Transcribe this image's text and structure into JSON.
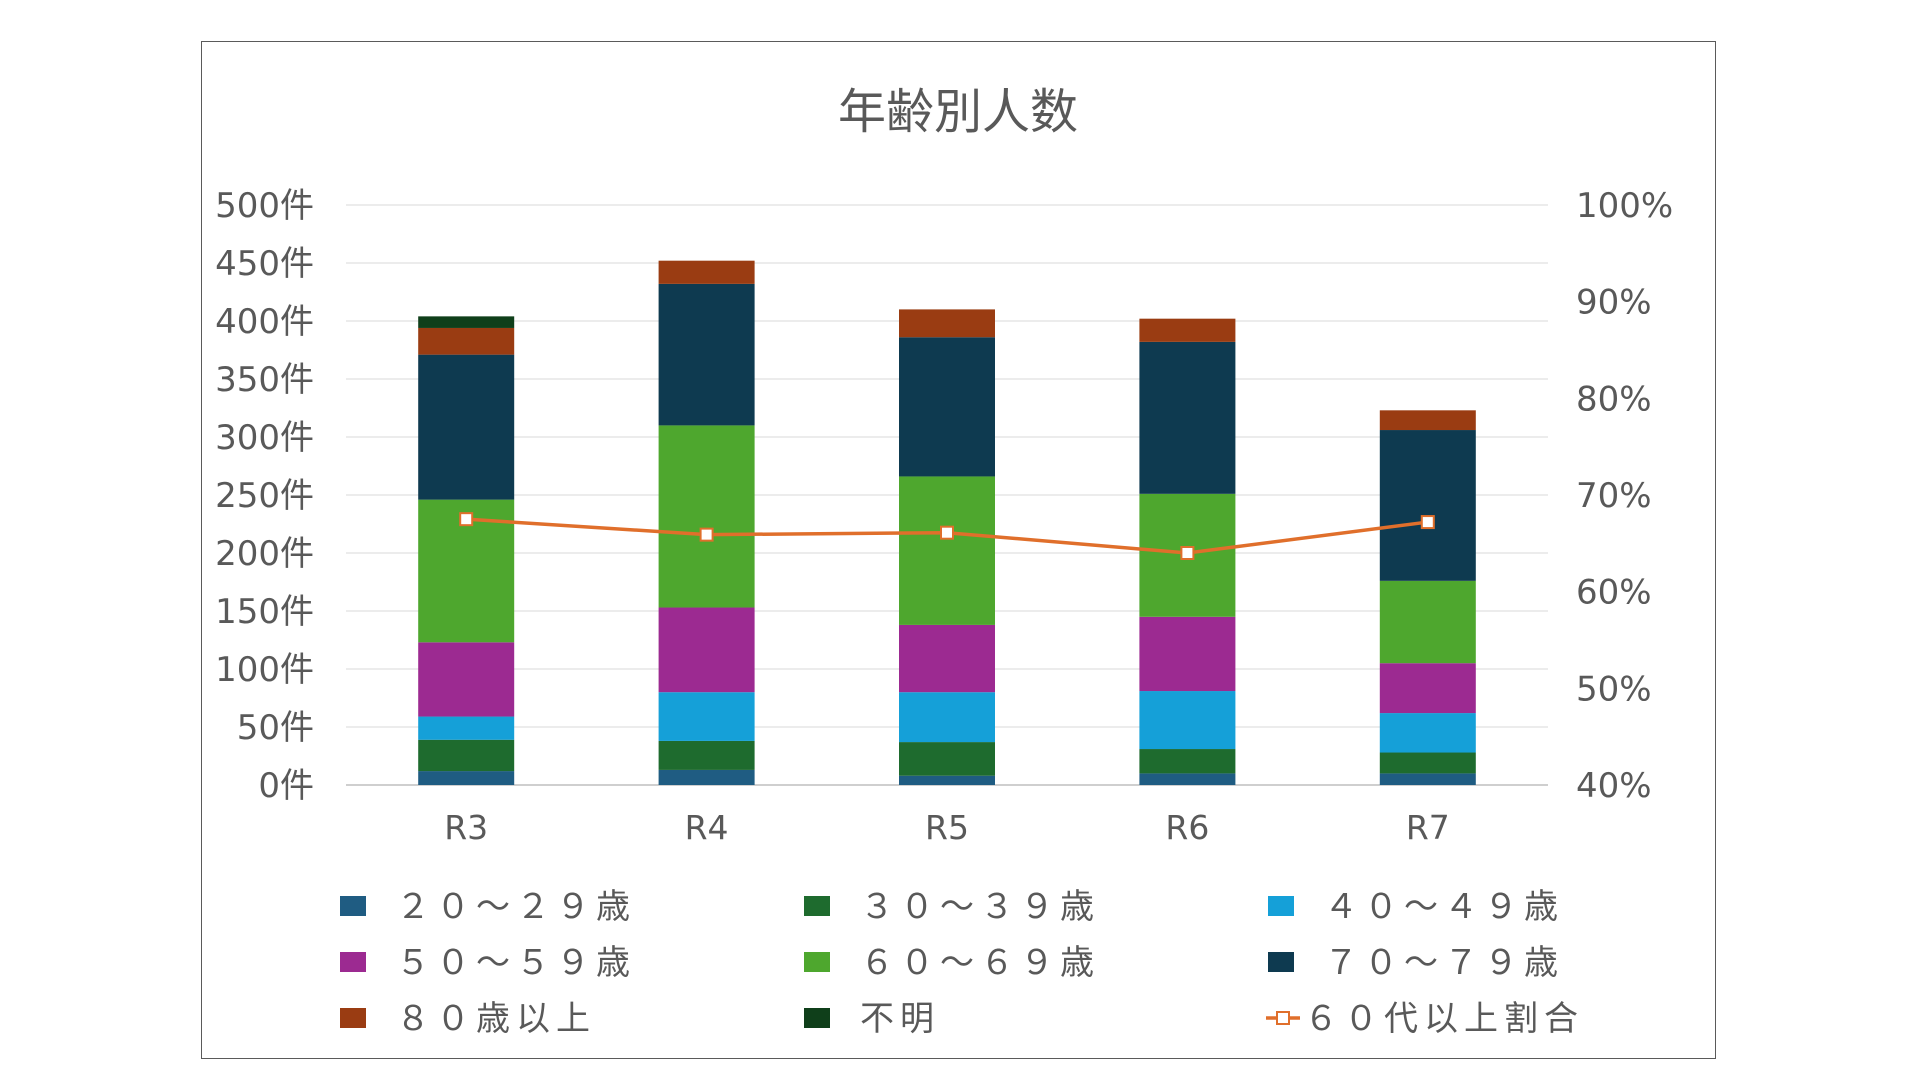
{
  "chart_data": {
    "type": "bar",
    "stacked": true,
    "title": "年齢別人数",
    "categories": [
      "R3",
      "R4",
      "R5",
      "R6",
      "R7"
    ],
    "y_ticks": [
      "0件",
      "50件",
      "100件",
      "150件",
      "200件",
      "250件",
      "300件",
      "350件",
      "400件",
      "450件",
      "500件"
    ],
    "y2_ticks": [
      "40%",
      "50%",
      "60%",
      "70%",
      "80%",
      "90%",
      "100%"
    ],
    "ylim": [
      0,
      500
    ],
    "y2lim": [
      0.4,
      1.0
    ],
    "grid": true,
    "legend_position": "bottom",
    "series": [
      {
        "name": "２０～２９歳",
        "color": "#1f5c82",
        "values": [
          12,
          13,
          8,
          10,
          10
        ]
      },
      {
        "name": "３０～３９歳",
        "color": "#1e6b2e",
        "values": [
          27,
          25,
          29,
          21,
          18
        ]
      },
      {
        "name": "４０～４９歳",
        "color": "#15a0d8",
        "values": [
          20,
          42,
          43,
          50,
          34
        ]
      },
      {
        "name": "５０～５９歳",
        "color": "#9c2a91",
        "values": [
          64,
          73,
          58,
          64,
          43
        ]
      },
      {
        "name": "６０～６９歳",
        "color": "#4ea72e",
        "values": [
          123,
          157,
          128,
          106,
          71
        ]
      },
      {
        "name": "７０～７９歳",
        "color": "#0e3a50",
        "values": [
          125,
          122,
          120,
          131,
          130
        ]
      },
      {
        "name": "８０歳以上",
        "color": "#9a3c12",
        "values": [
          23,
          20,
          24,
          20,
          17
        ]
      },
      {
        "name": "不明",
        "color": "#0f3f1a",
        "values": [
          10,
          0,
          0,
          0,
          0
        ]
      }
    ],
    "line_series": {
      "name": "６０代以上割合",
      "color": "#e06f2b",
      "axis": "right",
      "values": [
        0.675,
        0.659,
        0.661,
        0.64,
        0.672
      ]
    }
  }
}
